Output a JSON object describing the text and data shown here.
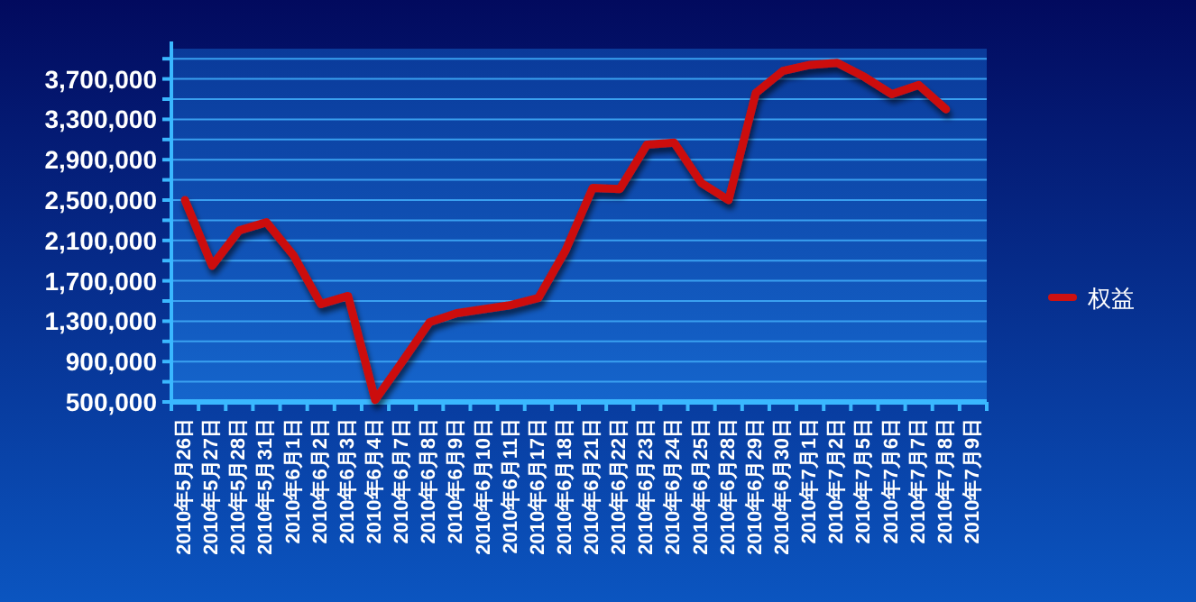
{
  "chart_data": {
    "type": "line",
    "categories": [
      "2010年5月26日",
      "2010年5月27日",
      "2010年5月28日",
      "2010年5月31日",
      "2010年6月1日",
      "2010年6月2日",
      "2010年6月3日",
      "2010年6月4日",
      "2010年6月7日",
      "2010年6月8日",
      "2010年6月9日",
      "2010年6月10日",
      "2010年6月11日",
      "2010年6月17日",
      "2010年6月18日",
      "2010年6月21日",
      "2010年6月22日",
      "2010年6月23日",
      "2010年6月24日",
      "2010年6月25日",
      "2010年6月28日",
      "2010年6月29日",
      "2010年6月30日",
      "2010年7月1日",
      "2010年7月2日",
      "2010年7月5日",
      "2010年7月6日",
      "2010年7月7日",
      "2010年7月8日",
      "2010年7月9日"
    ],
    "series": [
      {
        "name": "权益",
        "color": "#cc1111",
        "values": [
          2500000,
          1850000,
          2200000,
          2280000,
          1950000,
          1470000,
          1550000,
          520000,
          900000,
          1290000,
          1380000,
          1420000,
          1460000,
          1530000,
          2000000,
          2620000,
          2610000,
          3050000,
          3070000,
          2670000,
          2500000,
          3560000,
          3780000,
          3840000,
          3860000,
          3720000,
          3550000,
          3640000,
          3400000,
          null
        ]
      }
    ],
    "ylim": [
      500000,
      4000000
    ],
    "yticks": [
      {
        "value": 500000,
        "label": "500,000"
      },
      {
        "value": 700000,
        "label": null
      },
      {
        "value": 900000,
        "label": "900,000"
      },
      {
        "value": 1100000,
        "label": null
      },
      {
        "value": 1300000,
        "label": "1,300,000"
      },
      {
        "value": 1500000,
        "label": null
      },
      {
        "value": 1700000,
        "label": "1,700,000"
      },
      {
        "value": 1900000,
        "label": null
      },
      {
        "value": 2100000,
        "label": "2,100,000"
      },
      {
        "value": 2300000,
        "label": null
      },
      {
        "value": 2500000,
        "label": "2,500,000"
      },
      {
        "value": 2700000,
        "label": null
      },
      {
        "value": 2900000,
        "label": "2,900,000"
      },
      {
        "value": 3100000,
        "label": null
      },
      {
        "value": 3300000,
        "label": "3,300,000"
      },
      {
        "value": 3500000,
        "label": null
      },
      {
        "value": 3700000,
        "label": "3,700,000"
      },
      {
        "value": 3900000,
        "label": null
      }
    ],
    "grid": "y",
    "legend": "right",
    "line_style": "solid"
  }
}
